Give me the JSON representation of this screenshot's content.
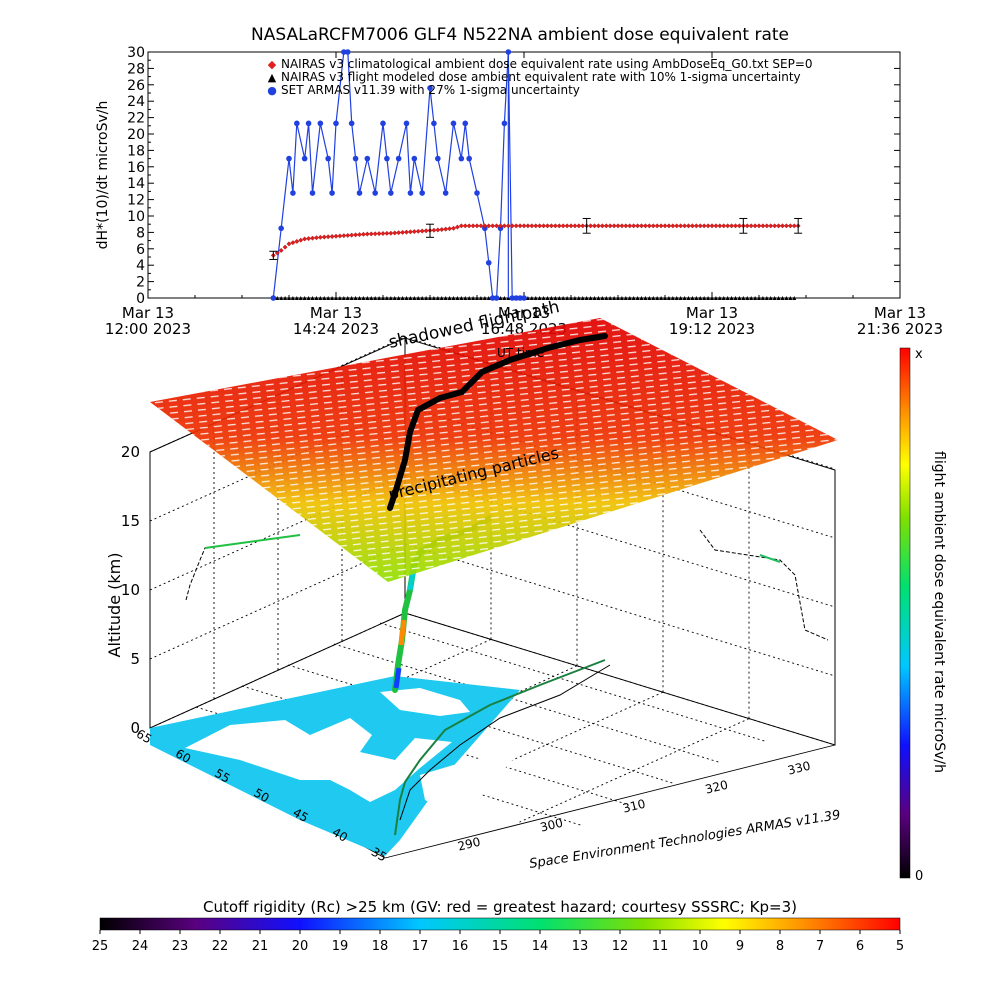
{
  "title": "NASALaRCFM7006  GLF4 N522NA ambient dose equivalent rate",
  "chart_data": [
    {
      "type": "scatter",
      "ylabel": "dH*(10)/dt microSv/h",
      "ylim": [
        0,
        30
      ],
      "yticks": [
        "0",
        "2",
        "4",
        "6",
        "8",
        "10",
        "12",
        "14",
        "16",
        "18",
        "20",
        "22",
        "24",
        "26",
        "28",
        "30"
      ],
      "xlim_hours": [
        12.0,
        21.6
      ],
      "xticks": [
        {
          "date": "Mar 13",
          "time": "12:00 2023"
        },
        {
          "date": "Mar 13",
          "time": "14:24 2023"
        },
        {
          "date": "Mar 13",
          "time": "16:48 2023"
        },
        {
          "date": "Mar 13",
          "time": "19:12 2023"
        },
        {
          "date": "Mar 13",
          "time": "21:36 2023"
        }
      ],
      "legend_position": "top",
      "legend": [
        {
          "symbol": "◆",
          "color": "#e02020",
          "label": "NAIRAS v3 climatological ambient dose equivalent rate using AmbDoseEq_G0.txt SEP=0"
        },
        {
          "symbol": "▲",
          "color": "#000000",
          "label": "NAIRAS v3 flight modeled dose ambient equivalent rate with 10% 1-sigma uncertainty"
        },
        {
          "symbol": "●",
          "color": "#2040e0",
          "label": "SET ARMAS v11.39 with 27% 1-sigma uncertainty"
        }
      ],
      "series": [
        {
          "name": "NAIRAS v3 climatological ambient dose equivalent rate using AmbDoseEq_G0.txt SEP=0",
          "color": "#e02020",
          "x_hours": [
            13.6,
            13.7,
            13.8,
            14.0,
            14.2,
            14.5,
            14.8,
            15.1,
            15.4,
            15.7,
            15.9,
            16.0,
            16.5,
            17.0,
            17.5,
            18.0,
            18.5,
            19.0,
            19.5,
            20.0,
            20.3
          ],
          "y": [
            5.2,
            5.8,
            6.6,
            7.2,
            7.4,
            7.6,
            7.8,
            7.9,
            8.1,
            8.3,
            8.5,
            8.8,
            8.8,
            8.8,
            8.8,
            8.8,
            8.8,
            8.8,
            8.8,
            8.8,
            8.8
          ],
          "error_bars": [
            {
              "x_hours": 13.6,
              "y": 5.2,
              "err": 0.5
            },
            {
              "x_hours": 15.6,
              "y": 8.2,
              "err": 0.8
            },
            {
              "x_hours": 17.6,
              "y": 8.8,
              "err": 0.9
            },
            {
              "x_hours": 19.6,
              "y": 8.8,
              "err": 0.9
            },
            {
              "x_hours": 20.3,
              "y": 8.8,
              "err": 0.9
            }
          ]
        },
        {
          "name": "NAIRAS v3 flight modeled dose ambient equivalent rate with 10% 1-sigma uncertainty",
          "color": "#000000",
          "x_range_hours": [
            13.6,
            20.3
          ],
          "y": 0
        },
        {
          "name": "SET ARMAS v11.39 with 27% 1-sigma uncertainty",
          "color": "#2040e0",
          "x_hours": [
            13.6,
            13.7,
            13.8,
            13.85,
            13.9,
            14.0,
            14.05,
            14.1,
            14.2,
            14.3,
            14.35,
            14.4,
            14.5,
            14.55,
            14.6,
            14.65,
            14.7,
            14.8,
            14.9,
            15.0,
            15.05,
            15.1,
            15.2,
            15.3,
            15.35,
            15.4,
            15.5,
            15.6,
            15.65,
            15.7,
            15.8,
            15.9,
            16.0,
            16.05,
            16.1,
            16.2,
            16.3,
            16.35,
            16.4,
            16.45,
            16.5,
            16.55,
            16.6,
            16.65,
            16.7,
            16.75,
            16.8
          ],
          "y": [
            0,
            8.5,
            17.0,
            12.8,
            21.3,
            17.0,
            21.3,
            12.8,
            21.3,
            17.0,
            12.8,
            21.3,
            30.0,
            30.0,
            21.3,
            17.0,
            12.8,
            17.0,
            12.8,
            21.3,
            17.0,
            12.8,
            17.0,
            21.3,
            12.8,
            17.0,
            12.8,
            25.6,
            21.3,
            17.0,
            12.8,
            21.3,
            17.0,
            21.3,
            17.0,
            12.8,
            8.5,
            4.3,
            0,
            0,
            8.5,
            21.3,
            30.0,
            0,
            0,
            0,
            0
          ]
        }
      ]
    },
    {
      "type": "3d-flight-path",
      "zlabel": "Altitude (km)",
      "zticks": [
        "0",
        "5",
        "10",
        "15",
        "20"
      ],
      "latitude_ticks": [
        "65",
        "60",
        "55",
        "50",
        "45",
        "40",
        "35"
      ],
      "longitude_ticks": [
        "290",
        "300",
        "310",
        "320",
        "330"
      ],
      "annotations": [
        "shadowed flightpath",
        "UT time",
        "precipitating particles"
      ],
      "colorbar_label": "flight ambient dose equivalent rate microSv/h",
      "colorbar_top": "x",
      "colorbar_bottom": "0",
      "footer": "Space Environment Technologies ARMAS v11.39",
      "cutoff_layer_altitude_km": 22
    }
  ],
  "cutoff_bar": {
    "label": "Cutoff rigidity (Rc) >25 km (GV: red = greatest hazard; courtesy SSSRC; Kp=3)",
    "ticks": [
      "25",
      "24",
      "23",
      "22",
      "21",
      "20",
      "19",
      "18",
      "17",
      "16",
      "15",
      "14",
      "13",
      "12",
      "11",
      "10",
      "9",
      "8",
      "7",
      "6",
      "5"
    ]
  }
}
